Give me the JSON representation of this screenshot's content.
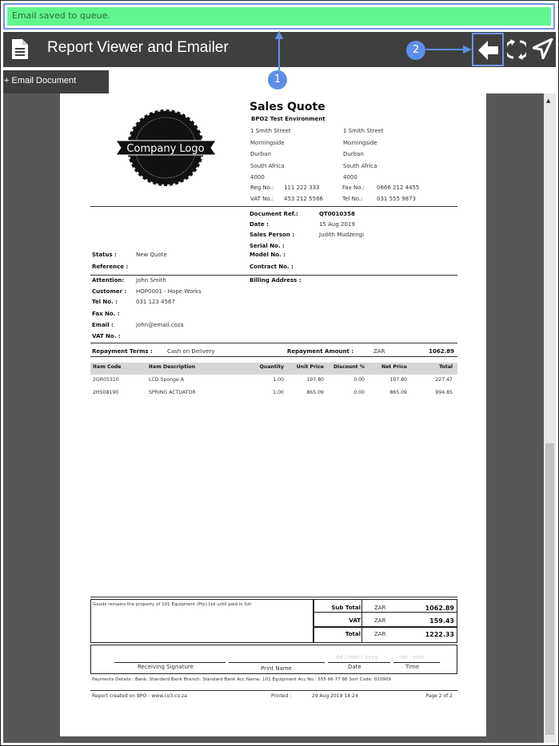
{
  "toast": {
    "message": "Email saved to queue."
  },
  "header": {
    "title": "Report Viewer and Emailer",
    "icons": [
      "document-icon",
      "back-arrow-icon",
      "refresh-icon",
      "send-icon"
    ]
  },
  "toolbar": {
    "email_document": "+ Email Document"
  },
  "annotations": [
    "1",
    "2"
  ],
  "colors": {
    "toast": "#62f58f",
    "header": "#3f3f3f",
    "annotation": "#5d8fe6"
  },
  "doc": {
    "logo_text": "Company Logo",
    "title": "Sales Quote",
    "company": "BPO2 Test Environment",
    "addr1": [
      "1 Smith Street",
      "Morningside",
      "Durban",
      "South Africa",
      "4000"
    ],
    "addr2": [
      "1 Smith Street",
      "Morningside",
      "Durban",
      "South Africa",
      "4000"
    ],
    "reg_label": "Reg No.:",
    "reg": "111 222 333",
    "fax_label": "Fax No.:",
    "fax": "0866 212 4455",
    "vat_label": "VAT No.:",
    "vat": "453 212 5566",
    "tel_label": "Tel No.:",
    "tel": "031 555 9873",
    "docref_label": "Document Ref.:",
    "docref": "QT0010358",
    "date_label": "Date :",
    "date": "15 Aug 2019",
    "sp_label": "Sales Person :",
    "sp": "Judith Mudzengi",
    "serial_label": "Serial No. :",
    "model_label": "Model No. :",
    "contract_label": "Contract No. :",
    "status_label": "Status :",
    "status": "New Quote",
    "reference_label": "Reference :",
    "attention_label": "Attention:",
    "attention": "John Smith",
    "customer_label": "Customer :",
    "customer": "HOP0001 - Hope Works",
    "ctel_label": "Tel No. :",
    "ctel": "031 123 4567",
    "cfax_label": "Fax No. :",
    "email_label": "Email :",
    "email": "john@email.coza",
    "cvat_label": "VAT No. :",
    "billing_label": "Billing Address :",
    "terms_label": "Repayment Terms :",
    "terms": "Cash on Delivery",
    "amount_label": "Repayment Amount :",
    "amount_cur": "ZAR",
    "amount": "1062.89",
    "columns": [
      "Item Code",
      "Item Description",
      "Quantity",
      "Unit Price",
      "Discount %",
      "Net Price",
      "Total"
    ],
    "rows": [
      [
        "2GR05310",
        "LCD Sponge A",
        "1.00",
        "197.80",
        "0.00",
        "197.80",
        "227.47"
      ],
      [
        "2HS08190",
        "SPRING ACTUATOR",
        "1.00",
        "865.09",
        "0.00",
        "865.09",
        "994.85"
      ]
    ],
    "note": "Goods remains the property of 101 Equipment (Pty) Ltd until paid in full",
    "subtotal_label": "Sub Total",
    "subtotal": "1062.89",
    "vat_total_label": "VAT",
    "vat_total": "159.43",
    "total_label": "Total",
    "total": "1222.33",
    "cur": "ZAR",
    "sig": "Receiving Signature",
    "print_name": "Print Name",
    "date_sig": "Date",
    "time_sig": "Time",
    "date_ph": "dd / mm / yyyy",
    "time_ph": "hh : mm",
    "payments": "Payments Details : Bank: Standard Bank Branch: Standard Bank Acc Name: 101 Equipment Acc No.: 555 66 77 88 Sort Code: 020909",
    "created": "Report created on BPO - www.co3.co.za",
    "printed_label": "Printed :",
    "printed": "29 Aug 2019 14:24",
    "page": "Page 2 of 2"
  }
}
